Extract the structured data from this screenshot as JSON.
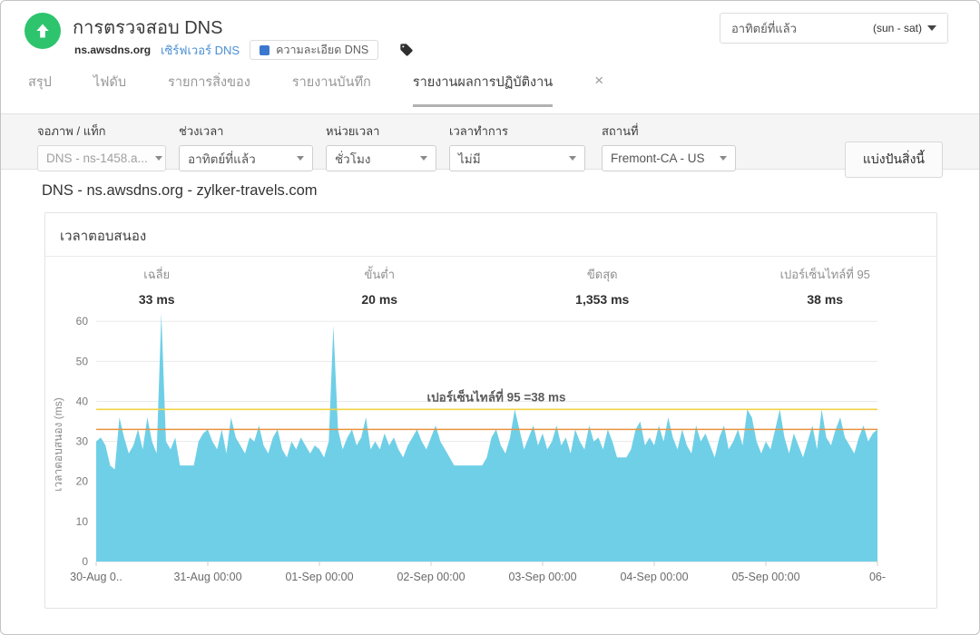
{
  "header": {
    "title": "การตรวจสอบ DNS",
    "monitor_name": "ns.awsdns.org",
    "monitor_type_link": "เซิร์ฟเวอร์ DNS",
    "badge": "ความละเอียด DNS",
    "badge_color": "#3c78cf",
    "status_color": "#2dc46d",
    "time_range": {
      "label": "อาทิตย์ที่แล้ว",
      "suffix": "(sun - sat)"
    }
  },
  "tabs": [
    {
      "label": "สรุป"
    },
    {
      "label": "ไฟดับ"
    },
    {
      "label": "รายการสิ่งของ"
    },
    {
      "label": "รายงานบันทึก"
    },
    {
      "label": "รายงานผลการปฏิบัติงาน"
    }
  ],
  "tab_close": "×",
  "filters": [
    {
      "label": "จอภาพ / แท็ก",
      "value": "DNS - ns-1458.a..."
    },
    {
      "label": "ช่วงเวลา",
      "value": "อาทิตย์ที่แล้ว"
    },
    {
      "label": "หน่วยเวลา",
      "value": "ชั่วโมง"
    },
    {
      "label": "เวลาทำการ",
      "value": "ไม่มี"
    },
    {
      "label": "สถานที่",
      "value": "Fremont-CA - US"
    }
  ],
  "share_button": "แบ่งปันสิ่งนี้",
  "report": {
    "title": "DNS - ns.awsdns.org - zylker-travels.com",
    "panel_title": "เวลาตอบสนอง"
  },
  "chart_data": {
    "type": "area",
    "title": "เวลาตอบสนอง",
    "ylabel": "เวลาตอบสนอง (ms)",
    "unit": "ms",
    "ylim": [
      0,
      63
    ],
    "yticks": [
      0,
      10,
      20,
      30,
      40,
      50,
      60
    ],
    "grid": true,
    "x_tick_labels": [
      "30-Aug 0..",
      "31-Aug 00:00",
      "01-Sep 00:00",
      "02-Sep 00:00",
      "03-Sep 00:00",
      "04-Sep 00:00",
      "05-Sep 00:00",
      "06-"
    ],
    "area_color": "#6fcfe7",
    "stats": [
      {
        "label": "เฉลี่ย",
        "value": "33 ms"
      },
      {
        "label": "ขั้นต่ำ",
        "value": "20 ms"
      },
      {
        "label": "ขีดสุด",
        "value": "1,353 ms"
      },
      {
        "label": "เปอร์เซ็นไทล์ที่ 95",
        "value": "38 ms"
      }
    ],
    "reference_lines": [
      {
        "name": "95th-percentile",
        "value": 38,
        "color": "#f1d144"
      },
      {
        "name": "average",
        "value": 33,
        "color": "#e8923f"
      }
    ],
    "annotation": "เปอร์เซ็นไทล์ที่ 95 =38 ms",
    "values": [
      30,
      31,
      29,
      24,
      23,
      36,
      31,
      27,
      29,
      33,
      28,
      36,
      30,
      27,
      62,
      30,
      28,
      31,
      24,
      24,
      24,
      24,
      30,
      32,
      33,
      30,
      28,
      33,
      27,
      36,
      31,
      29,
      27,
      31,
      30,
      34,
      29,
      27,
      31,
      33,
      28,
      26,
      30,
      28,
      31,
      29,
      27,
      29,
      28,
      26,
      30,
      59,
      33,
      28,
      31,
      33,
      29,
      31,
      36,
      28,
      30,
      28,
      32,
      29,
      31,
      28,
      26,
      29,
      31,
      33,
      30,
      28,
      31,
      34,
      30,
      28,
      26,
      24,
      24,
      24,
      24,
      24,
      24,
      24,
      26,
      31,
      33,
      29,
      27,
      31,
      38,
      33,
      28,
      31,
      34,
      29,
      32,
      28,
      30,
      34,
      29,
      31,
      27,
      33,
      30,
      28,
      34,
      30,
      31,
      28,
      33,
      30,
      26,
      26,
      26,
      28,
      33,
      35,
      29,
      31,
      29,
      34,
      30,
      36,
      31,
      28,
      33,
      29,
      27,
      34,
      30,
      32,
      29,
      26,
      31,
      34,
      28,
      30,
      33,
      29,
      38,
      36,
      30,
      27,
      30,
      28,
      33,
      38,
      31,
      27,
      32,
      29,
      26,
      30,
      34,
      28,
      38,
      31,
      29,
      33,
      36,
      31,
      29,
      27,
      31,
      34,
      30,
      32,
      33
    ]
  }
}
